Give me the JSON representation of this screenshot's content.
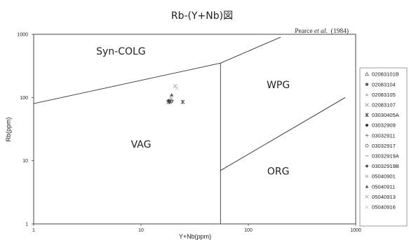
{
  "chart_data": {
    "type": "scatter",
    "title": "Rb-(Y+Nb)図",
    "source": {
      "author_pre": "Pearce ",
      "author_em": "et al",
      "author_post": ".  (1984)"
    },
    "xlabel": "Y+Nb(ppm)",
    "ylabel": "Rb(ppm)",
    "x_scale": "log",
    "y_scale": "log",
    "xlim": [
      1,
      1000
    ],
    "ylim": [
      1,
      1000
    ],
    "x_ticks": [
      "1",
      "10",
      "100",
      "1000"
    ],
    "y_ticks": [
      "1",
      "10",
      "100",
      "1000"
    ],
    "grid": false,
    "legend_position": "right",
    "regions": [
      {
        "label": "Syn-COLG",
        "x": 6.5,
        "y": 480
      },
      {
        "label": "WPG",
        "x": 190,
        "y": 140
      },
      {
        "label": "VAG",
        "x": 10,
        "y": 16
      },
      {
        "label": "ORG",
        "x": 190,
        "y": 6
      }
    ],
    "boundaries": [
      [
        [
          1,
          80
        ],
        [
          55,
          350
        ],
        [
          200,
          900
        ]
      ],
      [
        [
          55,
          350
        ],
        [
          55,
          1
        ]
      ],
      [
        [
          55,
          7
        ],
        [
          800,
          100
        ]
      ]
    ],
    "series": [
      {
        "name": "02083101B",
        "marker": "triangle-open",
        "color": "#777777",
        "points": [
          [
            18.5,
            86
          ]
        ]
      },
      {
        "name": "02083104",
        "marker": "square",
        "color": "#555555",
        "points": [
          [
            18.2,
            84
          ]
        ]
      },
      {
        "name": "02083105",
        "marker": "triangle",
        "color": "#bbbbbb",
        "points": [
          [
            18.8,
            92
          ]
        ]
      },
      {
        "name": "02083107",
        "marker": "x",
        "color": "#999999",
        "points": [
          [
            17.8,
            83
          ]
        ]
      },
      {
        "name": "03030405A",
        "marker": "asterisk",
        "color": "#444444",
        "points": [
          [
            24.5,
            85
          ]
        ]
      },
      {
        "name": "03032909",
        "marker": "circle",
        "color": "#333333",
        "points": [
          [
            18.5,
            88
          ]
        ]
      },
      {
        "name": "03032911",
        "marker": "plus",
        "color": "#777777",
        "points": [
          [
            19.5,
            90
          ]
        ]
      },
      {
        "name": "03032917",
        "marker": "circle-open",
        "color": "#666666",
        "points": [
          [
            19.2,
            87
          ]
        ]
      },
      {
        "name": "03032919A",
        "marker": "dash",
        "color": "#888888",
        "points": [
          [
            18.9,
            93
          ]
        ]
      },
      {
        "name": "03032919B",
        "marker": "diamond",
        "color": "#444444",
        "points": [
          [
            18.0,
            89
          ]
        ]
      },
      {
        "name": "05040901",
        "marker": "square",
        "color": "#cccccc",
        "points": [
          [
            19.0,
            98
          ]
        ]
      },
      {
        "name": "05040911",
        "marker": "triangle",
        "color": "#555555",
        "points": [
          [
            19.3,
            110
          ]
        ]
      },
      {
        "name": "05040913",
        "marker": "x",
        "color": "#aaaaaa",
        "points": [
          [
            20.8,
            152
          ]
        ]
      },
      {
        "name": "05040916",
        "marker": "x",
        "color": "#cccccc",
        "points": [
          [
            21.5,
            140
          ]
        ]
      }
    ]
  }
}
